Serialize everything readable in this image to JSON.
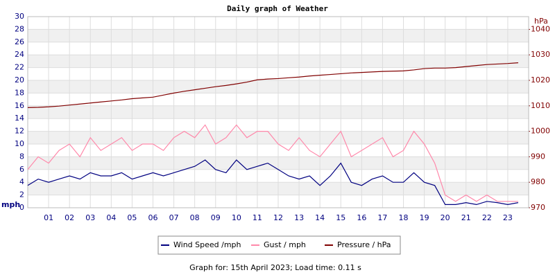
{
  "chart_data": {
    "type": "line",
    "title": "Daily graph of Weather",
    "footer": "Graph for: 15th April 2023; Load time: 0.11 s",
    "y_label": "mph",
    "y2_label": "hPa",
    "x": [
      0,
      0.5,
      1,
      1.5,
      2,
      2.5,
      3,
      3.5,
      4,
      4.5,
      5,
      5.5,
      6,
      6.5,
      7,
      7.5,
      8,
      8.5,
      9,
      9.5,
      10,
      10.5,
      11,
      11.5,
      12,
      12.5,
      13,
      13.5,
      14,
      14.5,
      15,
      15.5,
      16,
      16.5,
      17,
      17.5,
      18,
      18.5,
      19,
      19.5,
      20,
      20.5,
      21,
      21.5,
      22,
      22.5,
      23,
      23.5
    ],
    "xlim": [
      0,
      24
    ],
    "xticks": [
      {
        "value": 1,
        "label": "01"
      },
      {
        "value": 2,
        "label": "02"
      },
      {
        "value": 3,
        "label": "03"
      },
      {
        "value": 4,
        "label": "04"
      },
      {
        "value": 5,
        "label": "05"
      },
      {
        "value": 6,
        "label": "06"
      },
      {
        "value": 7,
        "label": "07"
      },
      {
        "value": 8,
        "label": "08"
      },
      {
        "value": 9,
        "label": "09"
      },
      {
        "value": 10,
        "label": "10"
      },
      {
        "value": 11,
        "label": "11"
      },
      {
        "value": 12,
        "label": "12"
      },
      {
        "value": 13,
        "label": "13"
      },
      {
        "value": 14,
        "label": "14"
      },
      {
        "value": 15,
        "label": "15"
      },
      {
        "value": 16,
        "label": "16"
      },
      {
        "value": 17,
        "label": "17"
      },
      {
        "value": 18,
        "label": "18"
      },
      {
        "value": 19,
        "label": "19"
      },
      {
        "value": 20,
        "label": "20"
      },
      {
        "value": 21,
        "label": "21"
      },
      {
        "value": 22,
        "label": "22"
      },
      {
        "value": 23,
        "label": "23"
      }
    ],
    "ylim": [
      0,
      30
    ],
    "yticks": [
      0,
      2,
      4,
      6,
      8,
      10,
      12,
      14,
      16,
      18,
      20,
      22,
      24,
      26,
      28,
      30
    ],
    "y2lim": [
      970,
      1045
    ],
    "y2ticks": [
      970,
      980,
      990,
      1000,
      1010,
      1020,
      1030,
      1040
    ],
    "grid": true,
    "series": [
      {
        "name": "Wind Speed /mph",
        "color": "#000080",
        "values": [
          3.5,
          4.5,
          4,
          4.5,
          5,
          4.5,
          5.5,
          5,
          5,
          5.5,
          4.5,
          5,
          5.5,
          5,
          5.5,
          6,
          6.5,
          7.5,
          6,
          5.5,
          7.5,
          6,
          6.5,
          7,
          6,
          5,
          4.5,
          5,
          3.5,
          5,
          7,
          4,
          3.5,
          4.5,
          5,
          4,
          4,
          5.5,
          4,
          3.5,
          0.5,
          0.5,
          0.8,
          0.5,
          1,
          0.8,
          0.5,
          0.8
        ]
      },
      {
        "name": "Gust / mph",
        "color": "#ff88aa",
        "values": [
          6,
          8,
          7,
          9,
          10,
          8,
          11,
          9,
          10,
          11,
          9,
          10,
          10,
          9,
          11,
          12,
          11,
          13,
          10,
          11,
          13,
          11,
          12,
          12,
          10,
          9,
          11,
          9,
          8,
          10,
          12,
          8,
          9,
          10,
          11,
          8,
          9,
          12,
          10,
          7,
          2,
          1,
          2,
          1,
          2,
          1,
          1,
          1
        ]
      },
      {
        "name": "Pressure / hPa",
        "color": "#800000",
        "axis": "y2",
        "values": [
          1009.3,
          1009.4,
          1009.6,
          1009.9,
          1010.3,
          1010.7,
          1011.1,
          1011.5,
          1011.9,
          1012.3,
          1012.8,
          1013.1,
          1013.4,
          1014.2,
          1015,
          1015.7,
          1016.3,
          1016.9,
          1017.5,
          1018,
          1018.6,
          1019.3,
          1020.2,
          1020.5,
          1020.7,
          1021,
          1021.3,
          1021.7,
          1022,
          1022.3,
          1022.6,
          1022.9,
          1023.1,
          1023.3,
          1023.5,
          1023.6,
          1023.7,
          1024.1,
          1024.6,
          1024.8,
          1024.8,
          1025,
          1025.4,
          1025.8,
          1026.2,
          1026.4,
          1026.6,
          1026.9
        ]
      }
    ]
  }
}
